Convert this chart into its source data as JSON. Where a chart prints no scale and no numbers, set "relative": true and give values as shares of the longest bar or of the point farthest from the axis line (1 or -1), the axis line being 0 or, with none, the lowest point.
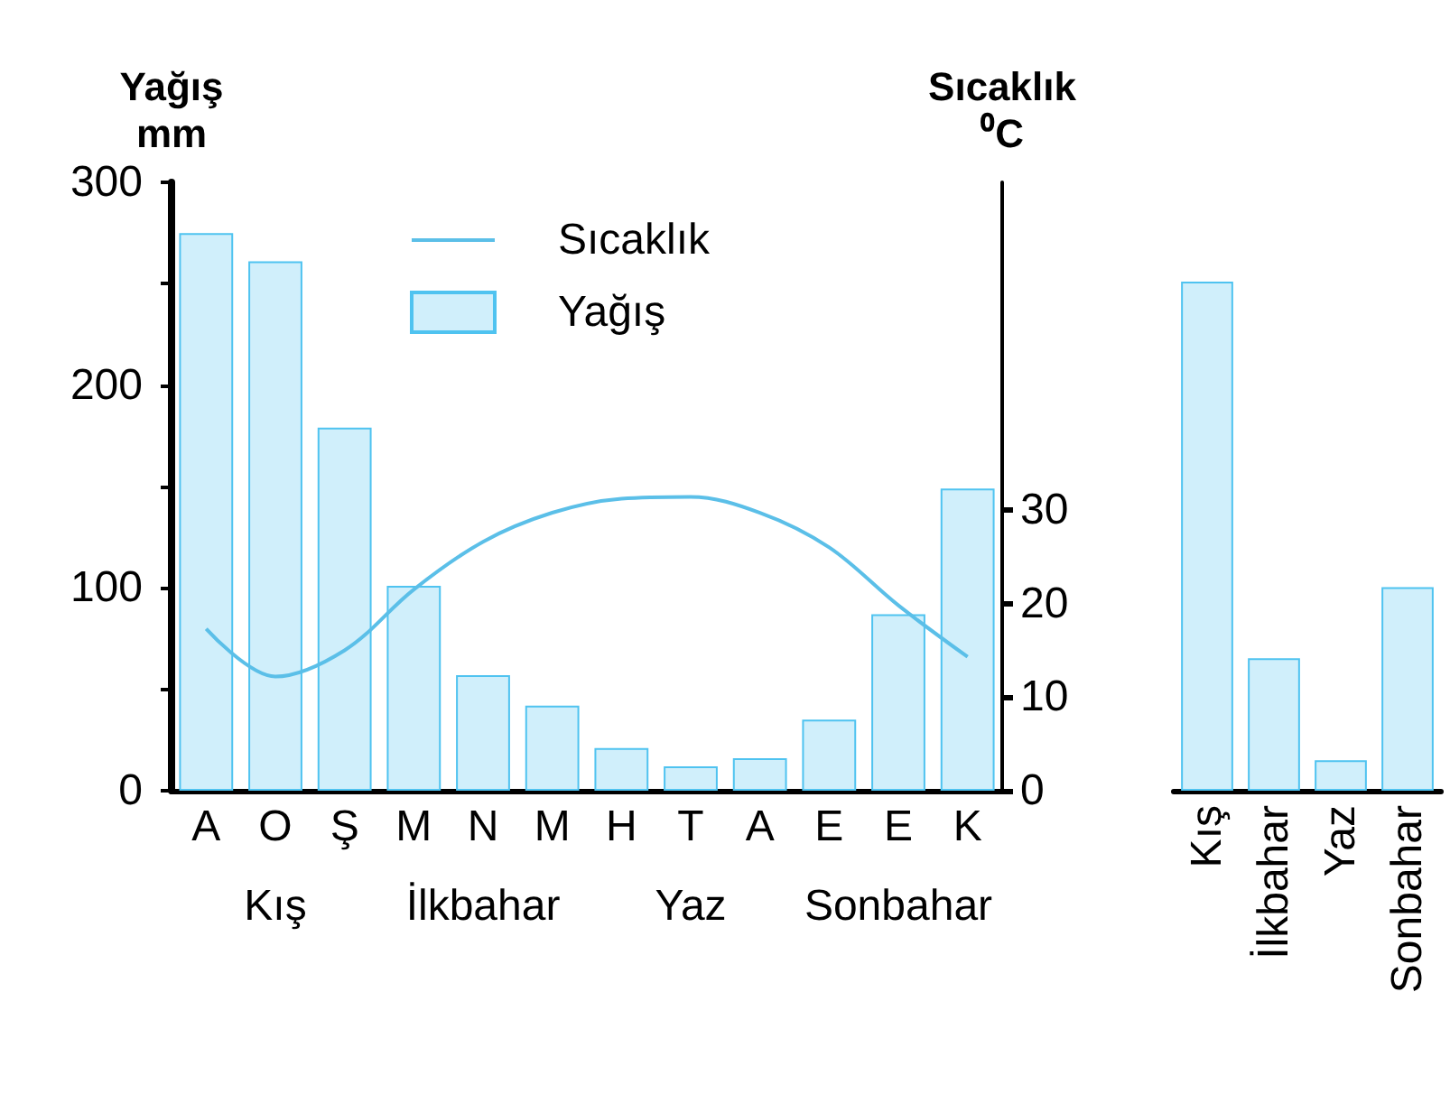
{
  "chart_data": [
    {
      "type": "bar",
      "categories": [
        "A",
        "O",
        "Ş",
        "M",
        "N",
        "M",
        "H",
        "T",
        "A",
        "E",
        "E",
        "K"
      ],
      "ylabel": "Yağış\nmm",
      "y2label": "Sıcaklık\n⁰C",
      "series": [
        {
          "name": "Sıcaklık",
          "type": "line",
          "axis": "y2",
          "color": "#5bbfe8",
          "values": [
            17.3,
            12.2,
            15,
            21.5,
            26.6,
            29.7,
            31.2,
            31.4,
            29.7,
            26,
            19.8,
            14.3
          ]
        },
        {
          "name": "Yağış",
          "color": "#4fc3f0",
          "values": [
            275,
            261,
            179,
            101,
            57,
            42,
            21,
            12,
            16,
            35,
            87,
            149
          ]
        }
      ],
      "ylim": [
        0,
        300
      ],
      "yticks": [
        0,
        {
          "value": 50,
          "label": null
        },
        100,
        {
          "value": 150,
          "label": null
        },
        200,
        {
          "value": 250,
          "label": null
        },
        300
      ],
      "y2lim": [
        0,
        65
      ],
      "y2ticks": [
        0,
        10,
        20,
        30
      ],
      "legend": "top",
      "marker": "none",
      "grid": false,
      "annotations": [
        "Kış",
        "İlkbahar",
        "Yaz",
        "Sonbahar"
      ]
    },
    {
      "type": "bar",
      "categories": [
        "Kış",
        "İlkbahar",
        "Yaz",
        "Sonbahar"
      ],
      "relative": true,
      "color": "#4fc3f0",
      "values": [
        1,
        0.26,
        0.06,
        0.4
      ]
    }
  ]
}
